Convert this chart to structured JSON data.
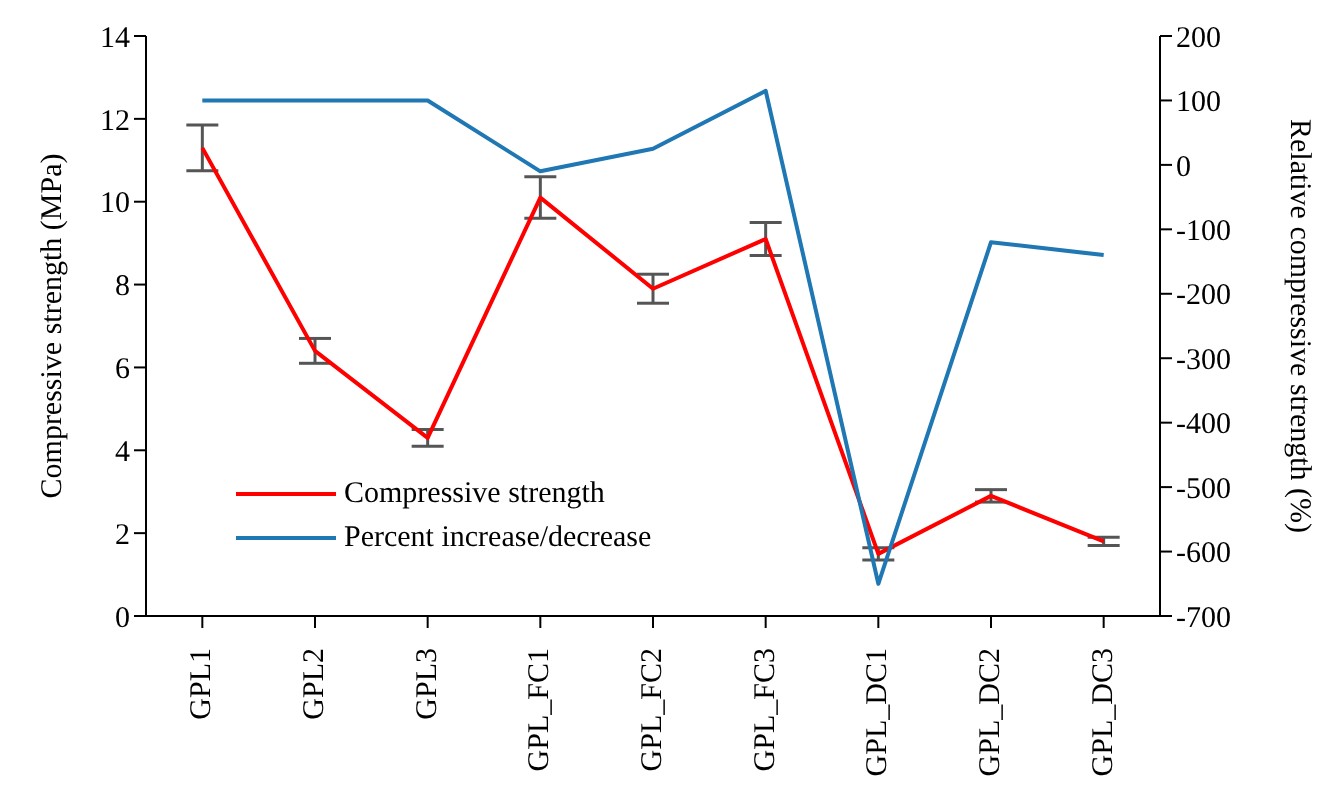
{
  "chart_data": {
    "type": "line",
    "categories": [
      "GPL1",
      "GPL2",
      "GPL3",
      "GPL_FC1",
      "GPL_FC2",
      "GPL_FC3",
      "GPL_DC1",
      "GPL_DC2",
      "GPL_DC3"
    ],
    "ylabel": "Compressive strength (MPa)",
    "y2label": "Relative compressive strength (%)",
    "ylim": [
      0,
      14
    ],
    "yticks": [
      0,
      2,
      4,
      6,
      8,
      10,
      12,
      14
    ],
    "y2lim": [
      -700,
      200
    ],
    "y2ticks": [
      -700,
      -600,
      -500,
      -400,
      -300,
      -200,
      -100,
      0,
      100,
      200
    ],
    "legend": "bottom left",
    "grid": false,
    "marker": "none",
    "series": [
      {
        "name": "Compressive strength",
        "color": "#ff0000",
        "values": [
          11.3,
          6.4,
          4.3,
          10.1,
          7.9,
          9.1,
          1.5,
          2.9,
          1.8
        ],
        "errors": [
          0.55,
          0.3,
          0.2,
          0.5,
          0.35,
          0.4,
          0.15,
          0.15,
          0.1
        ]
      },
      {
        "name": "Percent increase/decrease",
        "color": "#1f77b4",
        "axis": "y2",
        "values": [
          100,
          100,
          100,
          -10,
          25,
          115,
          -650,
          -120,
          -140
        ]
      }
    ]
  }
}
